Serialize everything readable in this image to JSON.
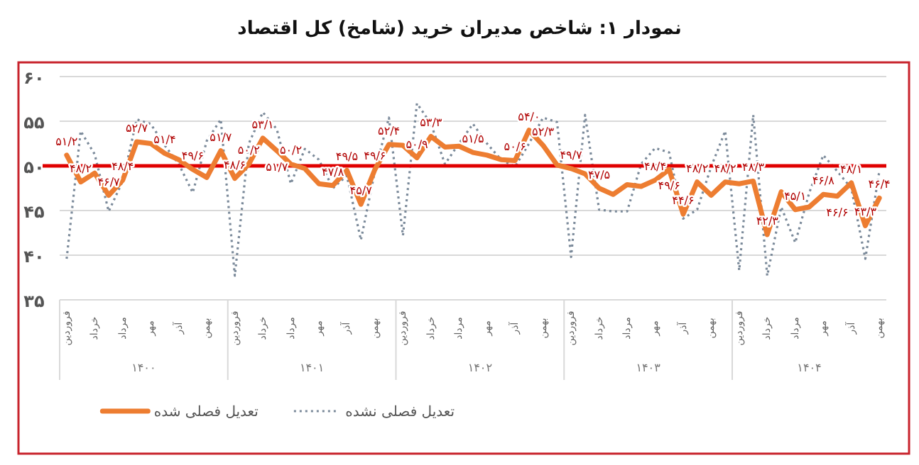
{
  "chart_data": {
    "type": "line",
    "title": "نمودار ۱: شاخص مدیران خرید (شامخ) کل اقتصاد",
    "categories": [
      "فروردین",
      null,
      "خرداد",
      null,
      "مرداد",
      null,
      "مهر",
      null,
      "آذر",
      null,
      "بهمن",
      null,
      "فروردین",
      null,
      "خرداد",
      null,
      "مرداد",
      null,
      "مهر",
      null,
      "آذر",
      null,
      "بهمن",
      null,
      "فروردین",
      null,
      "خرداد",
      null,
      "مرداد",
      null,
      "مهر",
      null,
      "آذر",
      null,
      "بهمن",
      null,
      "فروردین",
      null,
      "خرداد",
      null,
      "مرداد",
      null,
      "مهر",
      null,
      "آذر",
      null,
      "بهمن",
      null,
      "فروردین",
      null,
      "خرداد",
      null,
      "مرداد",
      null,
      "مهر",
      null,
      "آذر",
      null,
      "بهمن"
    ],
    "annotations": [
      "۱۴۰۰",
      "۱۴۰۱",
      "۱۴۰۲",
      "۱۴۰۳",
      "۱۴۰۴"
    ],
    "series": [
      {
        "name": "تعدیل فصلی نشده",
        "color": "#7b8a9a",
        "line_style": "dotted",
        "values": [
          39.6,
          53.9,
          51.3,
          44.9,
          48.3,
          55.2,
          54.7,
          52.3,
          50.2,
          47.0,
          52.8,
          55.2,
          37.7,
          52.5,
          56.0,
          54.1,
          48.0,
          51.9,
          50.7,
          47.5,
          48.9,
          41.7,
          49.4,
          55.4,
          42.2,
          57.0,
          54.7,
          50.2,
          52.5,
          54.7,
          52.5,
          50.7,
          49.9,
          52.5,
          55.4,
          54.9,
          39.8,
          55.7,
          45.1,
          44.9,
          44.9,
          50.2,
          52.0,
          51.5,
          44.1,
          45.1,
          49.9,
          53.9,
          38.3,
          55.7,
          37.7,
          45.4,
          41.4,
          47.0,
          51.2,
          49.4,
          47.5,
          39.6,
          49.4
        ]
      },
      {
        "name": "تعدیل فصلی شده",
        "color": "#ed7d31",
        "line_style": "solid",
        "values": [
          51.2,
          48.2,
          49.2,
          46.7,
          48.4,
          52.7,
          52.5,
          51.4,
          50.7,
          49.6,
          48.7,
          51.7,
          48.6,
          50.2,
          53.1,
          51.7,
          50.2,
          49.7,
          48.0,
          47.8,
          49.5,
          45.7,
          49.6,
          52.4,
          52.3,
          50.9,
          53.3,
          52.1,
          52.2,
          51.5,
          51.2,
          50.7,
          50.6,
          54.0,
          52.3,
          50.1,
          49.7,
          49.1,
          47.5,
          46.8,
          47.9,
          47.7,
          48.4,
          49.6,
          44.6,
          48.2,
          46.7,
          48.2,
          48.0,
          48.3,
          42.3,
          47.1,
          45.1,
          45.4,
          46.8,
          46.6,
          48.1,
          43.3,
          46.4
        ],
        "value_labels": [
          "۵۱/۲",
          "۴۸/۲",
          null,
          "۴۶/۷",
          "۴۸/۴",
          "۵۲/۷",
          null,
          "۵۱/۴",
          null,
          "۴۹/۶",
          null,
          "۵۱/۷",
          "۴۸/۶",
          "۵۰/۲",
          "۵۳/۱",
          "۵۱/۷",
          "۵۰/۲",
          null,
          null,
          "۴۷/۸",
          "۴۹/۵",
          "۴۵/۷",
          "۴۹/۶",
          "۵۲/۴",
          null,
          "۵۰/۹",
          "۵۳/۳",
          null,
          null,
          "۵۱/۵",
          null,
          null,
          "۵۰/۶",
          "۵۴/۰",
          "۵۲/۳",
          null,
          "۴۹/۷",
          null,
          "۴۷/۵",
          null,
          null,
          null,
          "۴۸/۴",
          "۴۹/۶",
          "۴۴/۶",
          "۴۸/۲",
          null,
          "۴۸/۲",
          null,
          "۴۸/۳",
          "۴۲/۳",
          null,
          "۴۵/۱",
          null,
          "۴۶/۸",
          "۴۶/۶",
          "۴۸/۱",
          "۴۳/۳",
          "۴۶/۴"
        ]
      }
    ],
    "ylim": [
      35,
      60
    ],
    "yticks": [
      {
        "value": 35,
        "label": "۳۵"
      },
      {
        "value": 40,
        "label": "۴۰"
      },
      {
        "value": 45,
        "label": "۴۵"
      },
      {
        "value": 50,
        "label": "۵۰"
      },
      {
        "value": 55,
        "label": "۵۵"
      },
      {
        "value": 60,
        "label": "۶۰"
      }
    ],
    "ref_lines": [
      {
        "axis": "y",
        "value": 50,
        "color": "#e00000"
      }
    ],
    "grid": "y",
    "legend": "bottom",
    "marker": "none"
  }
}
